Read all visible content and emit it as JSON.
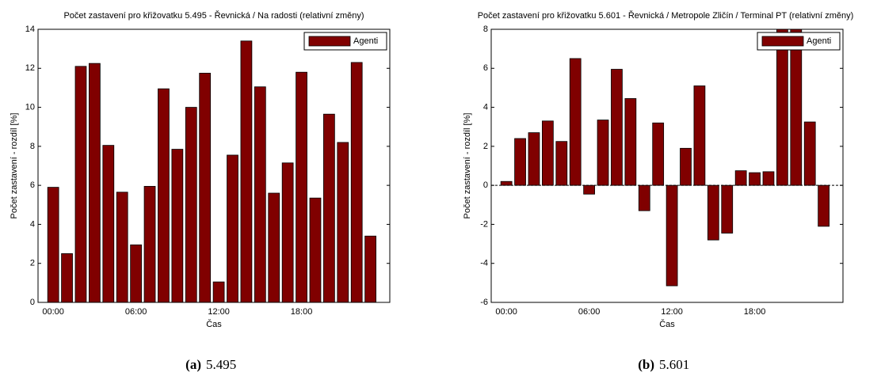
{
  "chart_data": [
    {
      "type": "bar",
      "title": "Počet zastavení pro křižovatku 5.495 - Řevnická / Na radosti (relativní změny)",
      "x_label": "Čas",
      "y_label": "Počet zastavení  - rozdíl [%]",
      "categories": [
        "00:00",
        null,
        null,
        null,
        null,
        null,
        "06:00",
        null,
        null,
        null,
        null,
        null,
        "12:00",
        null,
        null,
        null,
        null,
        null,
        "18:00",
        null,
        null,
        null,
        null,
        null
      ],
      "series": [
        {
          "name": "Agenti",
          "color": "#800000",
          "values": [
            5.9,
            2.5,
            12.1,
            12.25,
            8.05,
            5.65,
            2.95,
            5.95,
            10.95,
            7.85,
            10.0,
            11.75,
            1.05,
            7.55,
            13.4,
            11.05,
            5.6,
            7.15,
            11.8,
            5.35,
            9.65,
            8.2,
            12.3,
            3.4
          ]
        }
      ],
      "ylim": [
        0,
        14
      ],
      "yticks": [
        0,
        2,
        4,
        6,
        8,
        10,
        12,
        14
      ],
      "legend": "upper right",
      "zero_line": false
    },
    {
      "type": "bar",
      "title": "Počet zastavení pro křižovatku 5.601 - Řevnická / Metropole Zličín / Terminal PT (relativní změny)",
      "x_label": "Čas",
      "y_label": "Počet zastavení  - rozdíl [%]",
      "categories": [
        "00:00",
        null,
        null,
        null,
        null,
        null,
        "06:00",
        null,
        null,
        null,
        null,
        null,
        "12:00",
        null,
        null,
        null,
        null,
        null,
        "18:00",
        null,
        null,
        null,
        null,
        null
      ],
      "series": [
        {
          "name": "Agenti",
          "color": "#800000",
          "values": [
            0.2,
            2.4,
            2.7,
            3.3,
            2.25,
            6.5,
            -0.45,
            3.35,
            5.95,
            4.45,
            -1.3,
            3.2,
            -5.15,
            1.9,
            5.1,
            -2.8,
            -2.45,
            0.75,
            0.65,
            0.7,
            8.6,
            8.4,
            3.25,
            -2.1
          ]
        }
      ],
      "ylim": [
        -6,
        8
      ],
      "yticks": [
        -6,
        -4,
        -2,
        0,
        2,
        4,
        6,
        8
      ],
      "legend": "upper right",
      "zero_line": true
    }
  ],
  "captions": [
    {
      "label": "(a)",
      "text": "5.495"
    },
    {
      "label": "(b)",
      "text": "5.601"
    }
  ]
}
